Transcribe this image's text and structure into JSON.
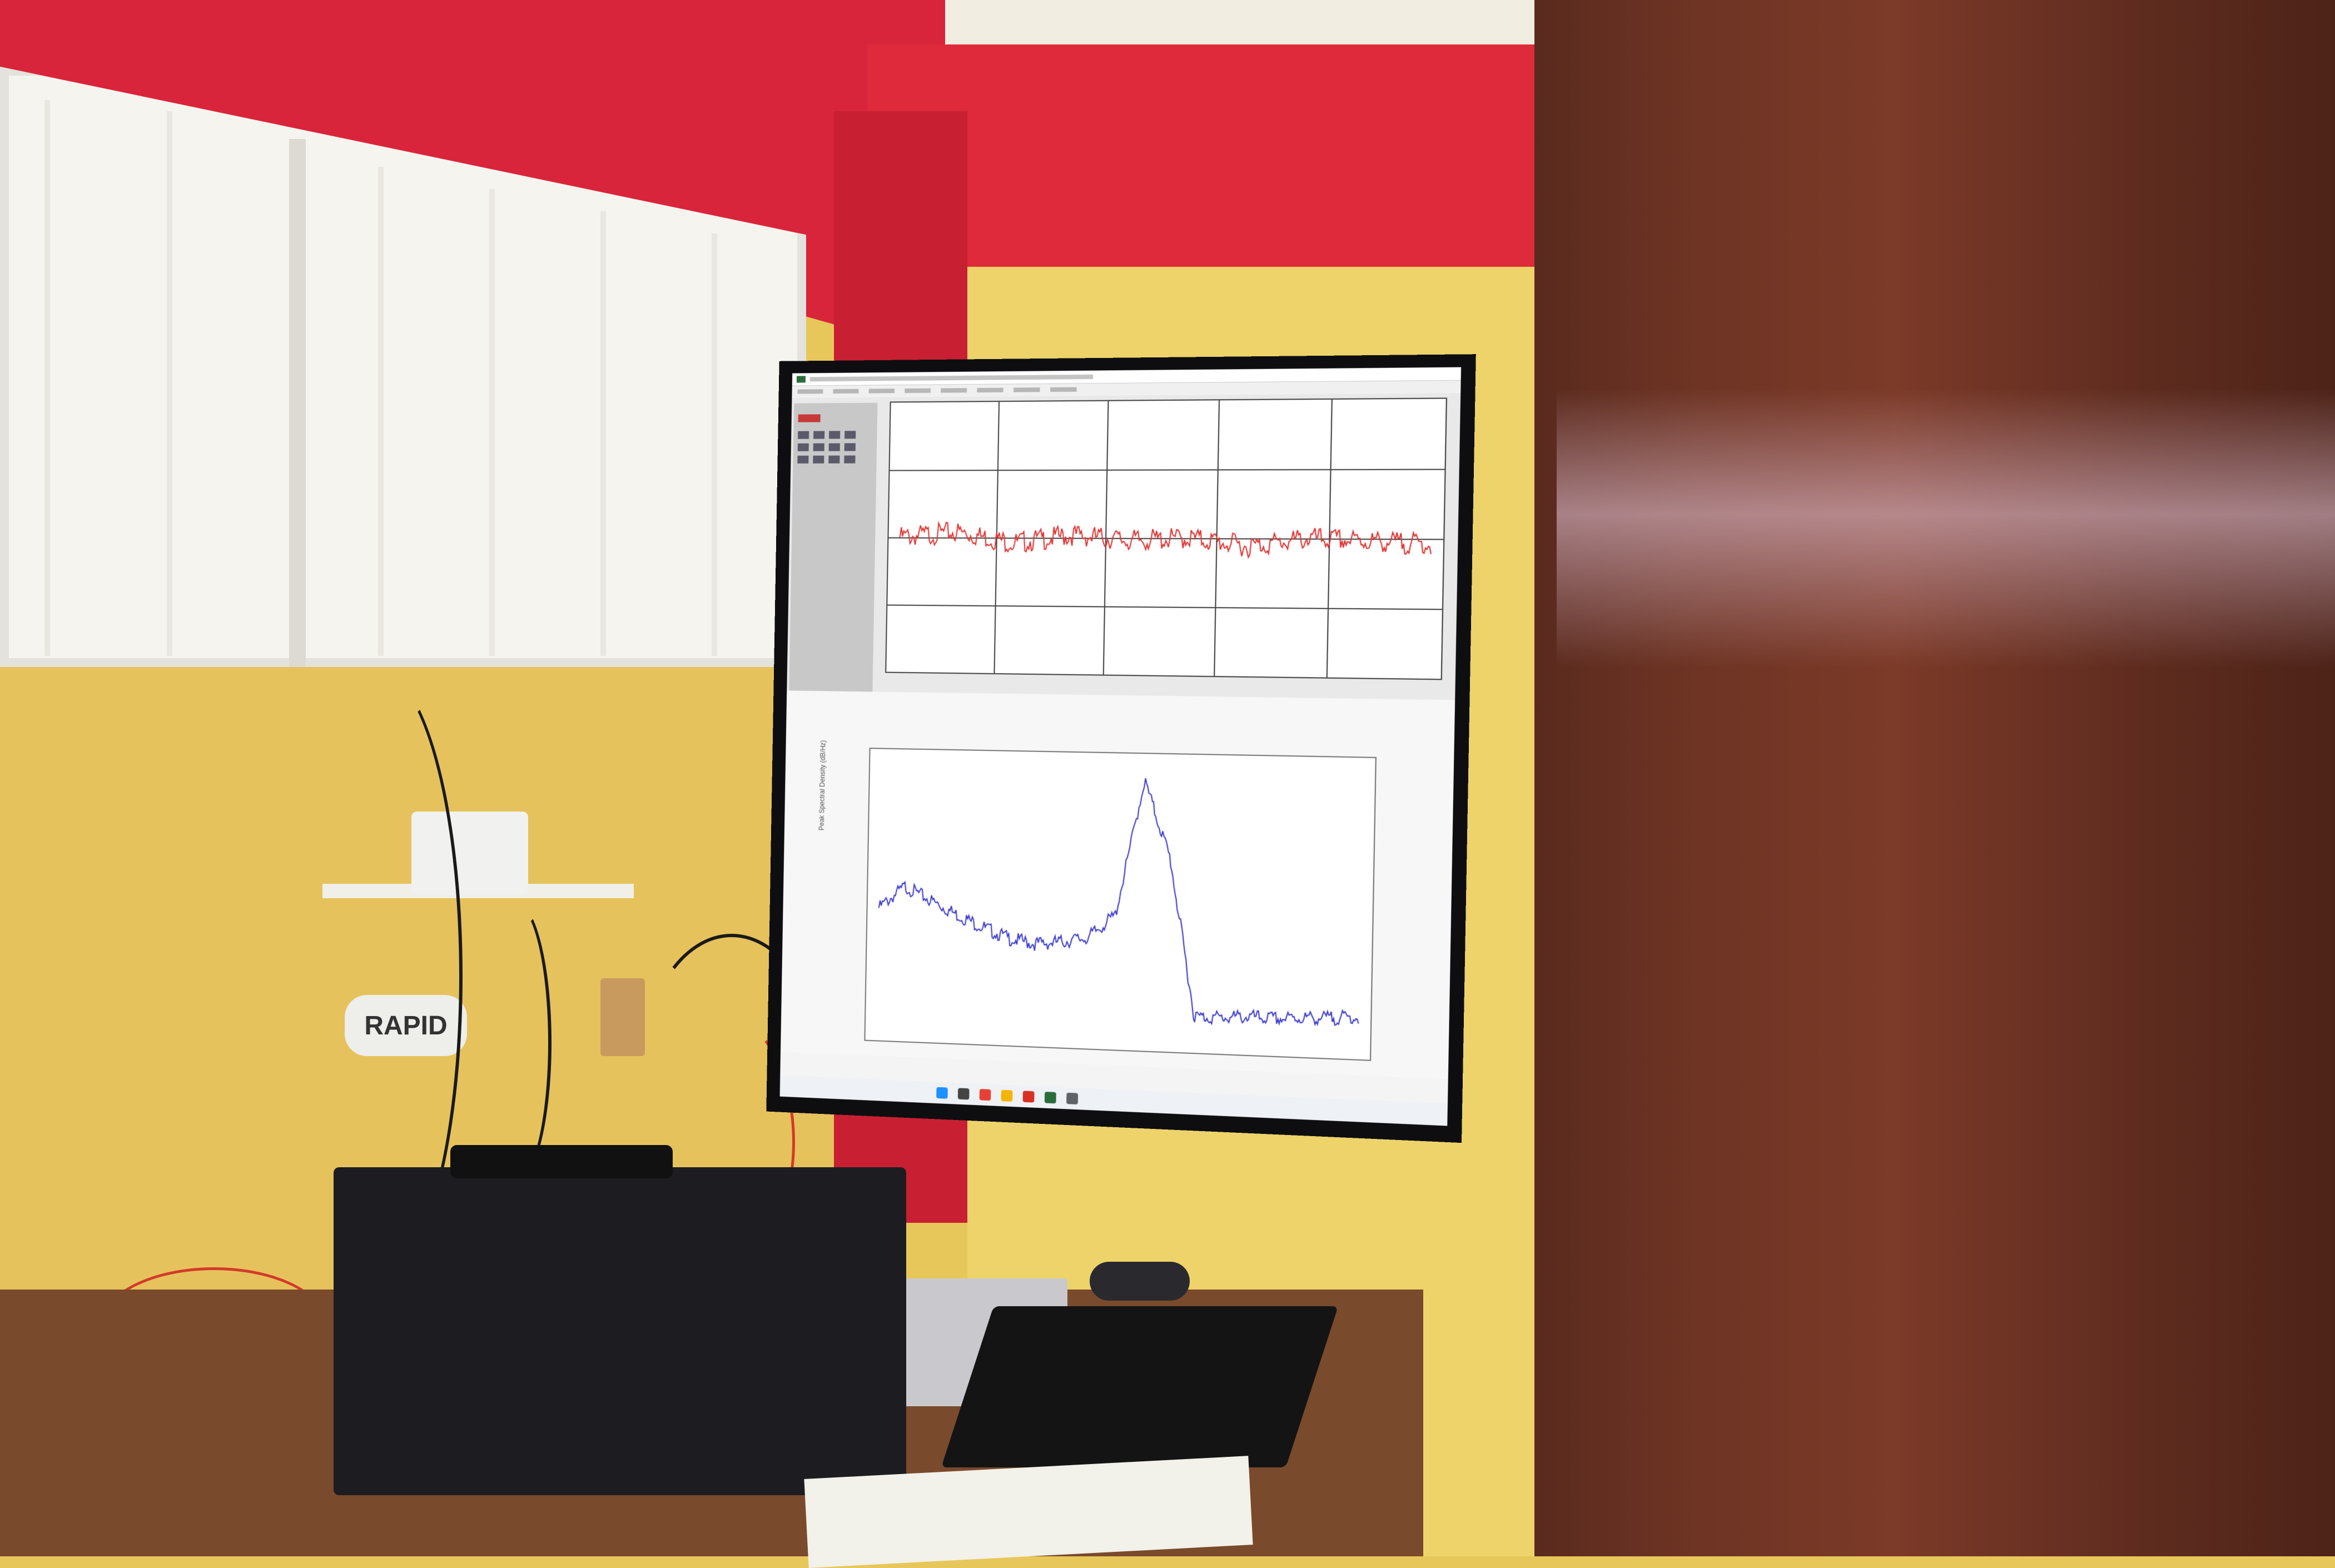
{
  "scene": {
    "description_type": "photo",
    "power_strip_label": "RAPID"
  },
  "colors": {
    "wall_red": "#d8253b",
    "wall_yellow": "#edd36a",
    "wood": "#6e3424",
    "trace_red": "#e0312f",
    "trace_blue": "#3a3ad0"
  },
  "chart_data": [
    {
      "type": "line",
      "title": "",
      "xlabel": "",
      "ylabel": "",
      "series": [
        {
          "values": [
            0.5,
            0.52,
            0.48,
            0.51,
            0.49,
            0.5,
            0.47,
            0.5,
            0.49,
            0.48
          ]
        }
      ]
    },
    {
      "type": "line",
      "title": "",
      "xlabel": "",
      "ylabel": "Peak Spectral Density (dB/Hz)",
      "series": [
        {
          "values": [
            150,
            175,
            160,
            145,
            132,
            120,
            115,
            118,
            124,
            150,
            300,
            215,
            40,
            40,
            42,
            41,
            43,
            44,
            46
          ]
        }
      ]
    }
  ]
}
